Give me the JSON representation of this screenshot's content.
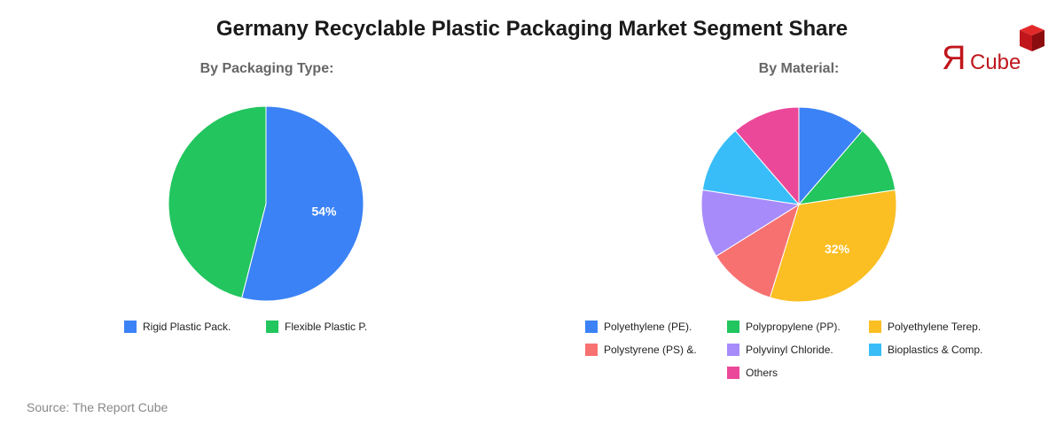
{
  "title": "Germany Recyclable Plastic Packaging Market Segment Share",
  "source": "Source: The Report Cube",
  "logo": {
    "letter": "Я",
    "text": "Cube"
  },
  "chart_data": [
    {
      "type": "pie",
      "title": "By Packaging Type:",
      "categories": [
        "Rigid Plastic Pack.",
        "Flexible Plastic P."
      ],
      "values": [
        54,
        46
      ],
      "colors": [
        "#3b82f6",
        "#22c55e"
      ],
      "labels_shown": [
        "54%",
        ""
      ],
      "legend_position": "bottom"
    },
    {
      "type": "pie",
      "title": "By Material:",
      "categories": [
        "Polyethylene (PE).",
        "Polypropylene (PP).",
        "Polyethylene Terep.",
        "Polystyrene (PS) &.",
        "Polyvinyl Chloride.",
        "Bioplastics & Comp.",
        "Others"
      ],
      "values": [
        11.3,
        11.3,
        32.2,
        11.3,
        11.3,
        11.3,
        11.3
      ],
      "colors": [
        "#3b82f6",
        "#22c55e",
        "#fbbf24",
        "#f87171",
        "#a78bfa",
        "#38bdf8",
        "#ec4899"
      ],
      "labels_shown": [
        "",
        "",
        "32%",
        "",
        "",
        "",
        ""
      ],
      "legend_position": "bottom"
    }
  ]
}
